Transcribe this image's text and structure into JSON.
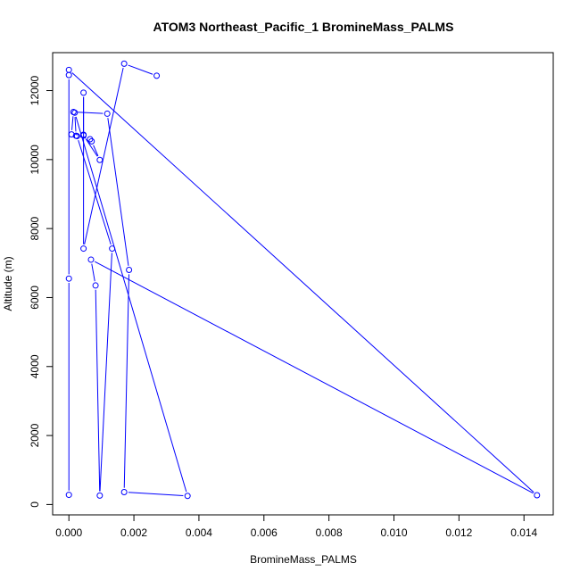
{
  "chart_data": {
    "type": "line",
    "title": "ATOM3 Northeast_Pacific_1 BromineMass_PALMS",
    "xlabel": "BromineMass_PALMS",
    "ylabel": "Altitude (m)",
    "xlim": [
      -0.0005,
      0.0149
    ],
    "ylim": [
      -300,
      13100
    ],
    "xticks": [
      0.0,
      0.002,
      0.004,
      0.006,
      0.008,
      0.01,
      0.012,
      0.014
    ],
    "xtick_labels": [
      "0.000",
      "0.002",
      "0.004",
      "0.006",
      "0.008",
      "0.010",
      "0.012",
      "0.014"
    ],
    "yticks": [
      0,
      2000,
      4000,
      6000,
      8000,
      10000,
      12000
    ],
    "ytick_labels": [
      "0",
      "2000",
      "4000",
      "6000",
      "8000",
      "10000",
      "12000"
    ],
    "grid": false,
    "series": [
      {
        "color": "#0000ff",
        "marker": "open-circle",
        "points": [
          {
            "x": 0.0,
            "y": 280
          },
          {
            "x": 0.0,
            "y": 6550
          },
          {
            "x": 0.0,
            "y": 12450
          },
          {
            "x": 0.0,
            "y": 12600
          },
          {
            "x": 0.0144,
            "y": 270
          },
          {
            "x": 0.00068,
            "y": 7100
          },
          {
            "x": 0.00082,
            "y": 6350
          },
          {
            "x": 0.00095,
            "y": 260
          },
          {
            "x": 0.00133,
            "y": 7420
          },
          {
            "x": 0.00025,
            "y": 10680
          },
          {
            "x": 0.00045,
            "y": 10720
          },
          {
            "x": 8e-05,
            "y": 10730
          },
          {
            "x": 0.00014,
            "y": 11380
          },
          {
            "x": 0.00118,
            "y": 11330
          },
          {
            "x": 0.00185,
            "y": 6800
          },
          {
            "x": 0.0017,
            "y": 360
          },
          {
            "x": 0.00365,
            "y": 250
          },
          {
            "x": 0.00018,
            "y": 11360
          },
          {
            "x": 0.00022,
            "y": 10690
          },
          {
            "x": 0.00065,
            "y": 10590
          },
          {
            "x": 0.0007,
            "y": 10530
          },
          {
            "x": 0.00095,
            "y": 9990
          },
          {
            "x": 0.00045,
            "y": 10700
          },
          {
            "x": 0.00045,
            "y": 11940
          },
          {
            "x": 0.00045,
            "y": 7420
          },
          {
            "x": 0.0017,
            "y": 12780
          },
          {
            "x": 0.0027,
            "y": 12430
          }
        ]
      }
    ]
  }
}
